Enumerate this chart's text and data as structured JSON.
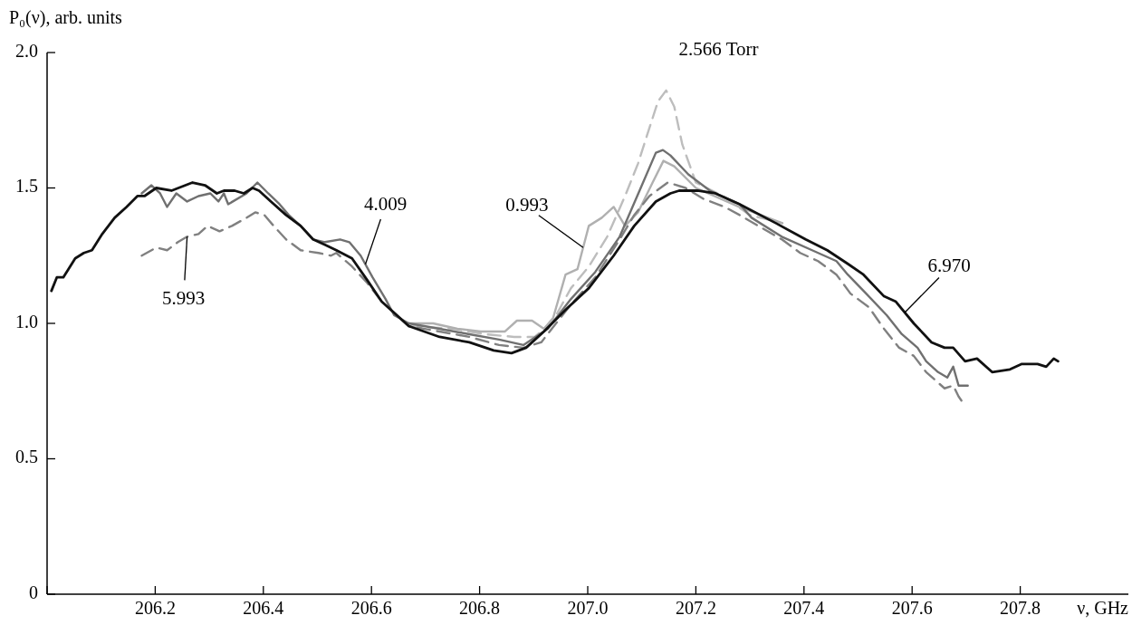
{
  "chart_data": {
    "type": "line",
    "ylabel": "P₀(ν), arb. units",
    "xlabel": "ν, GHz",
    "xlim": [
      206.0,
      208.0
    ],
    "xticks": [
      {
        "value": 206.0,
        "label": null
      },
      206.2,
      206.4,
      206.6,
      206.8,
      {
        "value": 207.0,
        "label": "207.0"
      },
      207.2,
      207.4,
      207.6,
      207.8
    ],
    "ylim": [
      0,
      2.0
    ],
    "yticks": [
      0,
      0.5,
      {
        "value": 1.0,
        "label": "1.0"
      },
      1.5,
      {
        "value": 2.0,
        "label": "2.0"
      }
    ],
    "marker": "none",
    "series": [
      {
        "name": "2.566 Torr",
        "color": "#bdbdbd",
        "line_style": "dashed",
        "x": [
          206.669,
          206.752,
          206.809,
          206.864,
          206.902,
          206.936,
          206.969,
          207.002,
          207.036,
          207.069,
          207.093,
          207.109,
          207.13,
          207.145,
          207.16,
          207.175,
          207.2,
          207.25,
          207.3,
          207.36
        ],
        "values": [
          0.99,
          0.98,
          0.96,
          0.95,
          0.95,
          1.01,
          1.13,
          1.21,
          1.32,
          1.47,
          1.59,
          1.69,
          1.82,
          1.86,
          1.8,
          1.66,
          1.52,
          1.47,
          1.4,
          1.37
        ]
      },
      {
        "name": "0.993",
        "color": "#b0b0b0",
        "line_style": "solid",
        "x": [
          206.669,
          206.714,
          206.759,
          206.802,
          206.847,
          206.869,
          206.897,
          206.919,
          206.936,
          206.959,
          206.981,
          207.002,
          207.026,
          207.048,
          207.069,
          207.093,
          207.12,
          207.14,
          207.16,
          207.2,
          207.28,
          207.36
        ],
        "values": [
          1.0,
          1.0,
          0.98,
          0.97,
          0.97,
          1.01,
          1.01,
          0.98,
          1.02,
          1.18,
          1.2,
          1.36,
          1.39,
          1.43,
          1.36,
          1.41,
          1.52,
          1.6,
          1.58,
          1.5,
          1.43,
          1.37
        ]
      },
      {
        "name": "5.993",
        "color": "#808080",
        "line_style": "dashed",
        "x": [
          206.175,
          206.202,
          206.222,
          206.242,
          206.259,
          206.28,
          206.297,
          206.319,
          206.342,
          206.369,
          206.385,
          206.402,
          206.419,
          206.442,
          206.469,
          206.502,
          206.525,
          206.535,
          206.564,
          206.592,
          206.619,
          206.669,
          206.726,
          206.781,
          206.836,
          206.881,
          206.914,
          206.969,
          207.014,
          207.059,
          207.086,
          207.114,
          207.148,
          207.181,
          207.214,
          207.253,
          207.281,
          207.359,
          207.393,
          207.426,
          207.46,
          207.486,
          207.52,
          207.548,
          207.576,
          207.603,
          207.626,
          207.66,
          207.676,
          207.686,
          207.693
        ],
        "values": [
          1.25,
          1.28,
          1.27,
          1.3,
          1.32,
          1.33,
          1.36,
          1.34,
          1.36,
          1.39,
          1.41,
          1.4,
          1.36,
          1.31,
          1.27,
          1.26,
          1.25,
          1.26,
          1.21,
          1.15,
          1.08,
          0.99,
          0.97,
          0.95,
          0.92,
          0.91,
          0.93,
          1.07,
          1.17,
          1.31,
          1.4,
          1.47,
          1.52,
          1.5,
          1.46,
          1.43,
          1.4,
          1.31,
          1.26,
          1.23,
          1.18,
          1.11,
          1.06,
          0.98,
          0.91,
          0.88,
          0.82,
          0.76,
          0.77,
          0.73,
          0.71
        ]
      },
      {
        "name": "4.009",
        "color": "#707070",
        "line_style": "solid",
        "x": [
          206.175,
          206.193,
          206.209,
          206.222,
          206.239,
          206.259,
          206.28,
          206.302,
          206.317,
          206.327,
          206.335,
          206.369,
          206.389,
          206.409,
          206.43,
          206.447,
          206.469,
          206.492,
          206.514,
          206.542,
          206.559,
          206.58,
          206.602,
          206.626,
          206.642,
          206.669,
          206.726,
          206.781,
          206.836,
          206.881,
          206.926,
          206.969,
          207.014,
          207.059,
          207.098,
          207.126,
          207.139,
          207.153,
          207.186,
          207.226,
          207.281,
          207.303,
          207.359,
          207.415,
          207.46,
          207.481,
          207.515,
          207.553,
          207.581,
          207.61,
          207.626,
          207.648,
          207.665,
          207.676,
          207.686,
          207.703
        ],
        "values": [
          1.48,
          1.51,
          1.48,
          1.43,
          1.48,
          1.45,
          1.47,
          1.48,
          1.45,
          1.48,
          1.44,
          1.48,
          1.52,
          1.48,
          1.44,
          1.4,
          1.36,
          1.31,
          1.3,
          1.31,
          1.3,
          1.25,
          1.17,
          1.09,
          1.03,
          1.0,
          0.98,
          0.96,
          0.94,
          0.92,
          0.98,
          1.09,
          1.19,
          1.32,
          1.5,
          1.63,
          1.64,
          1.62,
          1.55,
          1.49,
          1.44,
          1.39,
          1.32,
          1.27,
          1.23,
          1.18,
          1.11,
          1.03,
          0.96,
          0.91,
          0.86,
          0.82,
          0.8,
          0.84,
          0.77,
          0.77
        ]
      },
      {
        "name": "6.970",
        "color": "#111111",
        "line_style": "solid",
        "x": [
          206.008,
          206.018,
          206.03,
          206.052,
          206.068,
          206.083,
          206.102,
          206.125,
          206.147,
          206.167,
          206.18,
          206.202,
          206.23,
          206.269,
          206.292,
          206.314,
          206.327,
          206.347,
          206.364,
          206.38,
          206.392,
          206.414,
          206.442,
          206.469,
          206.492,
          206.514,
          206.535,
          206.564,
          206.592,
          206.619,
          206.647,
          206.669,
          206.726,
          206.781,
          206.826,
          206.859,
          206.886,
          206.919,
          206.959,
          207.002,
          207.048,
          207.086,
          207.126,
          207.153,
          207.169,
          207.203,
          207.236,
          207.281,
          207.348,
          207.403,
          207.443,
          207.481,
          207.51,
          207.548,
          207.57,
          207.603,
          207.636,
          207.66,
          207.676,
          207.698,
          207.72,
          207.748,
          207.781,
          207.803,
          207.832,
          207.848,
          207.862,
          207.87
        ],
        "values": [
          1.12,
          1.17,
          1.17,
          1.24,
          1.26,
          1.27,
          1.33,
          1.39,
          1.43,
          1.47,
          1.47,
          1.5,
          1.49,
          1.52,
          1.51,
          1.48,
          1.49,
          1.49,
          1.48,
          1.5,
          1.49,
          1.45,
          1.4,
          1.36,
          1.31,
          1.29,
          1.27,
          1.24,
          1.16,
          1.08,
          1.03,
          0.99,
          0.95,
          0.93,
          0.9,
          0.89,
          0.91,
          0.97,
          1.05,
          1.13,
          1.25,
          1.36,
          1.45,
          1.48,
          1.49,
          1.49,
          1.48,
          1.44,
          1.37,
          1.31,
          1.27,
          1.22,
          1.18,
          1.1,
          1.08,
          1.0,
          0.93,
          0.91,
          0.91,
          0.86,
          0.87,
          0.82,
          0.83,
          0.85,
          0.85,
          0.84,
          0.87,
          0.86
        ]
      }
    ]
  }
}
